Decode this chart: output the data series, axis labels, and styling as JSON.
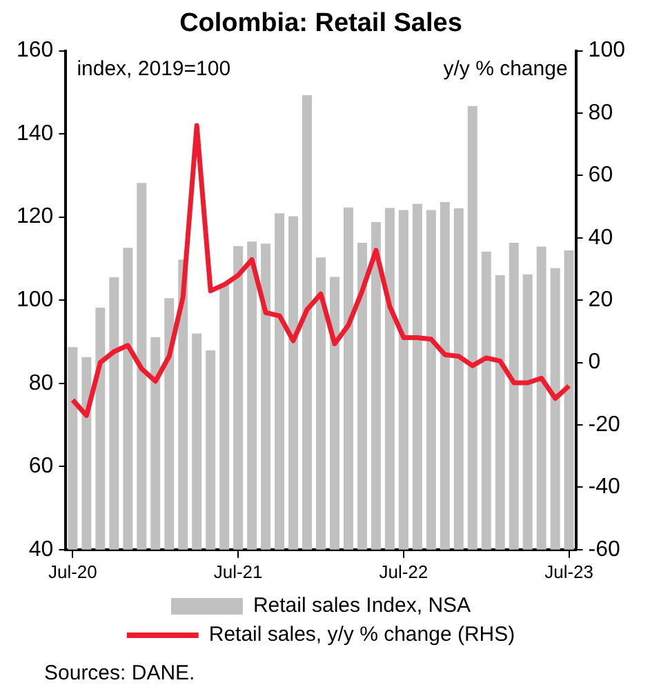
{
  "chart_data": {
    "type": "bar",
    "title": "Colombia: Retail Sales",
    "ylabel": "index, 2019=100",
    "y2label": "y/y % change",
    "categories": [
      "Jul-20",
      null,
      null,
      null,
      null,
      null,
      null,
      null,
      null,
      null,
      null,
      null,
      "Jul-21",
      null,
      null,
      null,
      null,
      null,
      null,
      null,
      null,
      null,
      null,
      null,
      "Jul-22",
      null,
      null,
      null,
      null,
      null,
      null,
      null,
      null,
      null,
      null,
      null,
      "Jul-23"
    ],
    "series": [
      {
        "name": "Retail sales Index, NSA",
        "color": "#c0c0c0",
        "values": [
          88.7,
          86.3,
          98.2,
          105.5,
          112.6,
          128.2,
          91.1,
          100.5,
          109.8,
          92,
          87.9,
          104,
          113,
          114.1,
          113.6,
          120.9,
          120.2,
          149.3,
          110.3,
          105.6,
          122.3,
          113.8,
          118.8,
          122.2,
          121.7,
          123.2,
          121.7,
          123.6,
          122.1,
          146.7,
          111.7,
          106,
          113.8,
          106.2,
          112.9,
          107.7,
          112
        ]
      },
      {
        "name": "Retail sales, y/y % change (RHS)",
        "type": "line",
        "axis": "y2",
        "color": "#ed1c2e",
        "values": [
          -12,
          -17,
          0,
          3.5,
          5.5,
          -2,
          -6,
          2,
          21,
          76,
          23,
          25,
          28,
          33,
          16,
          15,
          7,
          17,
          22,
          6,
          12,
          23,
          36,
          18,
          8,
          8,
          7.5,
          2.5,
          2,
          -1,
          1.5,
          0.5,
          -6.5,
          -6.5,
          -5,
          -11.5,
          -7.5
        ]
      }
    ],
    "ylim": [
      40,
      160
    ],
    "yticks": [
      40,
      60,
      80,
      100,
      120,
      140,
      160
    ],
    "y2lim": [
      -60,
      100
    ],
    "y2ticks": [
      -60,
      -40,
      -20,
      0,
      20,
      40,
      60,
      80,
      100
    ],
    "grid": false,
    "legend": "bottom",
    "marker": "none",
    "annotations": [
      "Sources: DANE."
    ]
  }
}
